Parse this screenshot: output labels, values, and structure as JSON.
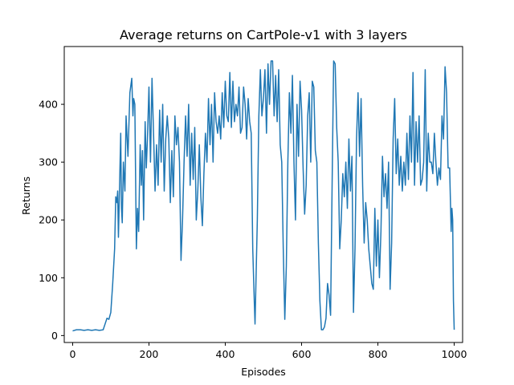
{
  "chart_data": {
    "type": "line",
    "title": "Average returns on CartPole-v1 with 3 layers",
    "xlabel": "Episodes",
    "ylabel": "Returns",
    "xlim": [
      -22,
      1022
    ],
    "ylim": [
      -12,
      500
    ],
    "xticks": [
      0,
      200,
      400,
      600,
      800,
      1000
    ],
    "yticks": [
      0,
      100,
      200,
      300,
      400
    ],
    "grid": false,
    "legend": "none",
    "series": [
      {
        "color": "#1f77b4",
        "points": [
          [
            0,
            8
          ],
          [
            10,
            10
          ],
          [
            20,
            10
          ],
          [
            30,
            9
          ],
          [
            40,
            10
          ],
          [
            50,
            9
          ],
          [
            60,
            10
          ],
          [
            70,
            9
          ],
          [
            80,
            10
          ],
          [
            85,
            20
          ],
          [
            90,
            30
          ],
          [
            95,
            28
          ],
          [
            100,
            40
          ],
          [
            105,
            90
          ],
          [
            110,
            150
          ],
          [
            113,
            240
          ],
          [
            116,
            230
          ],
          [
            118,
            250
          ],
          [
            120,
            170
          ],
          [
            123,
            260
          ],
          [
            126,
            350
          ],
          [
            128,
            220
          ],
          [
            130,
            195
          ],
          [
            133,
            300
          ],
          [
            137,
            250
          ],
          [
            140,
            380
          ],
          [
            145,
            310
          ],
          [
            150,
            420
          ],
          [
            155,
            445
          ],
          [
            158,
            380
          ],
          [
            160,
            410
          ],
          [
            163,
            400
          ],
          [
            167,
            150
          ],
          [
            170,
            220
          ],
          [
            173,
            180
          ],
          [
            177,
            330
          ],
          [
            180,
            260
          ],
          [
            183,
            320
          ],
          [
            186,
            200
          ],
          [
            190,
            370
          ],
          [
            193,
            290
          ],
          [
            196,
            340
          ],
          [
            200,
            430
          ],
          [
            204,
            300
          ],
          [
            208,
            445
          ],
          [
            212,
            350
          ],
          [
            216,
            250
          ],
          [
            220,
            330
          ],
          [
            224,
            260
          ],
          [
            228,
            390
          ],
          [
            232,
            300
          ],
          [
            236,
            400
          ],
          [
            240,
            250
          ],
          [
            244,
            340
          ],
          [
            248,
            380
          ],
          [
            252,
            340
          ],
          [
            256,
            230
          ],
          [
            260,
            320
          ],
          [
            264,
            240
          ],
          [
            268,
            380
          ],
          [
            272,
            330
          ],
          [
            276,
            360
          ],
          [
            280,
            300
          ],
          [
            284,
            130
          ],
          [
            288,
            200
          ],
          [
            292,
            300
          ],
          [
            296,
            380
          ],
          [
            300,
            310
          ],
          [
            304,
            400
          ],
          [
            308,
            260
          ],
          [
            312,
            350
          ],
          [
            316,
            270
          ],
          [
            320,
            360
          ],
          [
            324,
            200
          ],
          [
            328,
            250
          ],
          [
            332,
            330
          ],
          [
            336,
            240
          ],
          [
            340,
            190
          ],
          [
            344,
            280
          ],
          [
            348,
            350
          ],
          [
            352,
            300
          ],
          [
            356,
            410
          ],
          [
            360,
            330
          ],
          [
            364,
            400
          ],
          [
            368,
            300
          ],
          [
            372,
            420
          ],
          [
            376,
            370
          ],
          [
            380,
            350
          ],
          [
            384,
            380
          ],
          [
            388,
            340
          ],
          [
            392,
            420
          ],
          [
            396,
            360
          ],
          [
            400,
            440
          ],
          [
            404,
            380
          ],
          [
            408,
            370
          ],
          [
            412,
            455
          ],
          [
            416,
            360
          ],
          [
            420,
            440
          ],
          [
            424,
            370
          ],
          [
            428,
            400
          ],
          [
            432,
            380
          ],
          [
            436,
            430
          ],
          [
            440,
            350
          ],
          [
            444,
            360
          ],
          [
            448,
            430
          ],
          [
            452,
            400
          ],
          [
            456,
            340
          ],
          [
            460,
            410
          ],
          [
            464,
            370
          ],
          [
            468,
            350
          ],
          [
            472,
            150
          ],
          [
            476,
            60
          ],
          [
            478,
            20
          ],
          [
            480,
            80
          ],
          [
            484,
            200
          ],
          [
            488,
            380
          ],
          [
            492,
            460
          ],
          [
            496,
            380
          ],
          [
            500,
            410
          ],
          [
            504,
            460
          ],
          [
            508,
            350
          ],
          [
            512,
            470
          ],
          [
            516,
            400
          ],
          [
            520,
            475
          ],
          [
            524,
            475
          ],
          [
            528,
            380
          ],
          [
            532,
            450
          ],
          [
            536,
            370
          ],
          [
            540,
            460
          ],
          [
            544,
            330
          ],
          [
            548,
            300
          ],
          [
            552,
            150
          ],
          [
            556,
            28
          ],
          [
            560,
            120
          ],
          [
            564,
            300
          ],
          [
            568,
            420
          ],
          [
            572,
            350
          ],
          [
            576,
            450
          ],
          [
            580,
            300
          ],
          [
            584,
            200
          ],
          [
            588,
            400
          ],
          [
            592,
            310
          ],
          [
            596,
            440
          ],
          [
            600,
            390
          ],
          [
            604,
            290
          ],
          [
            608,
            210
          ],
          [
            612,
            260
          ],
          [
            616,
            380
          ],
          [
            620,
            420
          ],
          [
            624,
            300
          ],
          [
            628,
            440
          ],
          [
            632,
            430
          ],
          [
            636,
            320
          ],
          [
            640,
            300
          ],
          [
            644,
            160
          ],
          [
            648,
            60
          ],
          [
            652,
            10
          ],
          [
            656,
            10
          ],
          [
            660,
            15
          ],
          [
            664,
            30
          ],
          [
            668,
            90
          ],
          [
            672,
            70
          ],
          [
            676,
            35
          ],
          [
            680,
            260
          ],
          [
            684,
            475
          ],
          [
            688,
            470
          ],
          [
            692,
            360
          ],
          [
            696,
            300
          ],
          [
            700,
            150
          ],
          [
            704,
            200
          ],
          [
            708,
            280
          ],
          [
            712,
            240
          ],
          [
            716,
            300
          ],
          [
            720,
            220
          ],
          [
            724,
            340
          ],
          [
            728,
            250
          ],
          [
            732,
            310
          ],
          [
            736,
            40
          ],
          [
            740,
            150
          ],
          [
            744,
            340
          ],
          [
            748,
            420
          ],
          [
            752,
            310
          ],
          [
            756,
            410
          ],
          [
            760,
            260
          ],
          [
            764,
            160
          ],
          [
            768,
            230
          ],
          [
            772,
            200
          ],
          [
            776,
            150
          ],
          [
            780,
            120
          ],
          [
            784,
            90
          ],
          [
            788,
            80
          ],
          [
            792,
            220
          ],
          [
            796,
            120
          ],
          [
            800,
            200
          ],
          [
            804,
            100
          ],
          [
            808,
            180
          ],
          [
            812,
            310
          ],
          [
            816,
            240
          ],
          [
            820,
            280
          ],
          [
            824,
            220
          ],
          [
            828,
            300
          ],
          [
            832,
            80
          ],
          [
            836,
            160
          ],
          [
            840,
            340
          ],
          [
            844,
            410
          ],
          [
            848,
            280
          ],
          [
            852,
            340
          ],
          [
            856,
            260
          ],
          [
            860,
            310
          ],
          [
            864,
            250
          ],
          [
            868,
            300
          ],
          [
            872,
            260
          ],
          [
            876,
            350
          ],
          [
            880,
            270
          ],
          [
            884,
            380
          ],
          [
            888,
            300
          ],
          [
            892,
            455
          ],
          [
            896,
            260
          ],
          [
            900,
            370
          ],
          [
            904,
            300
          ],
          [
            908,
            380
          ],
          [
            912,
            260
          ],
          [
            916,
            270
          ],
          [
            920,
            300
          ],
          [
            924,
            460
          ],
          [
            928,
            250
          ],
          [
            932,
            350
          ],
          [
            936,
            300
          ],
          [
            940,
            300
          ],
          [
            944,
            280
          ],
          [
            948,
            350
          ],
          [
            952,
            300
          ],
          [
            956,
            260
          ],
          [
            960,
            290
          ],
          [
            964,
            270
          ],
          [
            968,
            380
          ],
          [
            972,
            340
          ],
          [
            976,
            465
          ],
          [
            980,
            420
          ],
          [
            984,
            290
          ],
          [
            988,
            290
          ],
          [
            992,
            180
          ],
          [
            994,
            220
          ],
          [
            996,
            200
          ],
          [
            998,
            60
          ],
          [
            1000,
            10
          ]
        ]
      }
    ]
  }
}
